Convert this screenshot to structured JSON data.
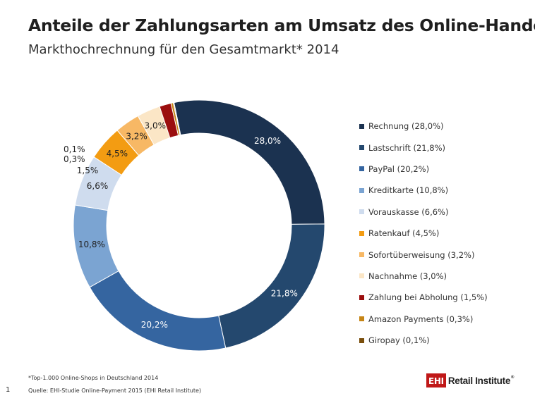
{
  "header": {
    "title": "Anteile der Zahlungsarten am Umsatz des Online-Handels",
    "subtitle": "Markthochrechnung  für den Gesamtmarkt* 2014"
  },
  "chart_data": {
    "type": "pie",
    "variant": "donut",
    "title": "",
    "legend_position": "right",
    "categories": [
      "Rechnung",
      "Lastschrift",
      "PayPal",
      "Kreditkarte",
      "Vorauskasse",
      "Ratenkauf",
      "Sofortüberweisung",
      "Nachnahme",
      "Zahlung bei Abholung",
      "Amazon Payments",
      "Giropay"
    ],
    "values": [
      28.0,
      21.8,
      20.2,
      10.8,
      6.6,
      4.5,
      3.2,
      3.0,
      1.5,
      0.3,
      0.1
    ],
    "value_labels": [
      "28,0%",
      "21,8%",
      "20,2%",
      "10,8%",
      "6,6%",
      "4,5%",
      "3,2%",
      "3,0%",
      "1,5%",
      "0,3%",
      "0,1%"
    ],
    "legend_labels": [
      "Rechnung (28,0%)",
      "Lastschrift (21,8%)",
      "PayPal (20,2%)",
      "Kreditkarte (10,8%)",
      "Vorauskasse (6,6%)",
      "Ratenkauf (4,5%)",
      "Sofortüberweisung (3,2%)",
      "Nachnahme (3,0%)",
      "Zahlung bei Abholung (1,5%)",
      "Amazon Payments (0,3%)",
      "Giropay (0,1%)"
    ],
    "colors": [
      "#1b3250",
      "#24486e",
      "#3565a0",
      "#7ba4d2",
      "#cfdcee",
      "#f39c12",
      "#f7b865",
      "#fbe6c6",
      "#9b0e0e",
      "#c68516",
      "#7a4e0c"
    ],
    "label_colors": [
      "#ffffff",
      "#ffffff",
      "#ffffff",
      "#222222",
      "#222222",
      "#222222",
      "#222222",
      "#222222",
      "#222222",
      "#222222",
      "#222222"
    ]
  },
  "footer": {
    "footnote": "*Top-1.000 Online-Shops in Deutschland 2014",
    "source": "Quelle: EHI-Studie Online-Payment 2015 (EHI Retail Institute)",
    "page_number": "1",
    "logo_mark": "EHI",
    "logo_text": "Retail Institute",
    "logo_reg": "®"
  }
}
